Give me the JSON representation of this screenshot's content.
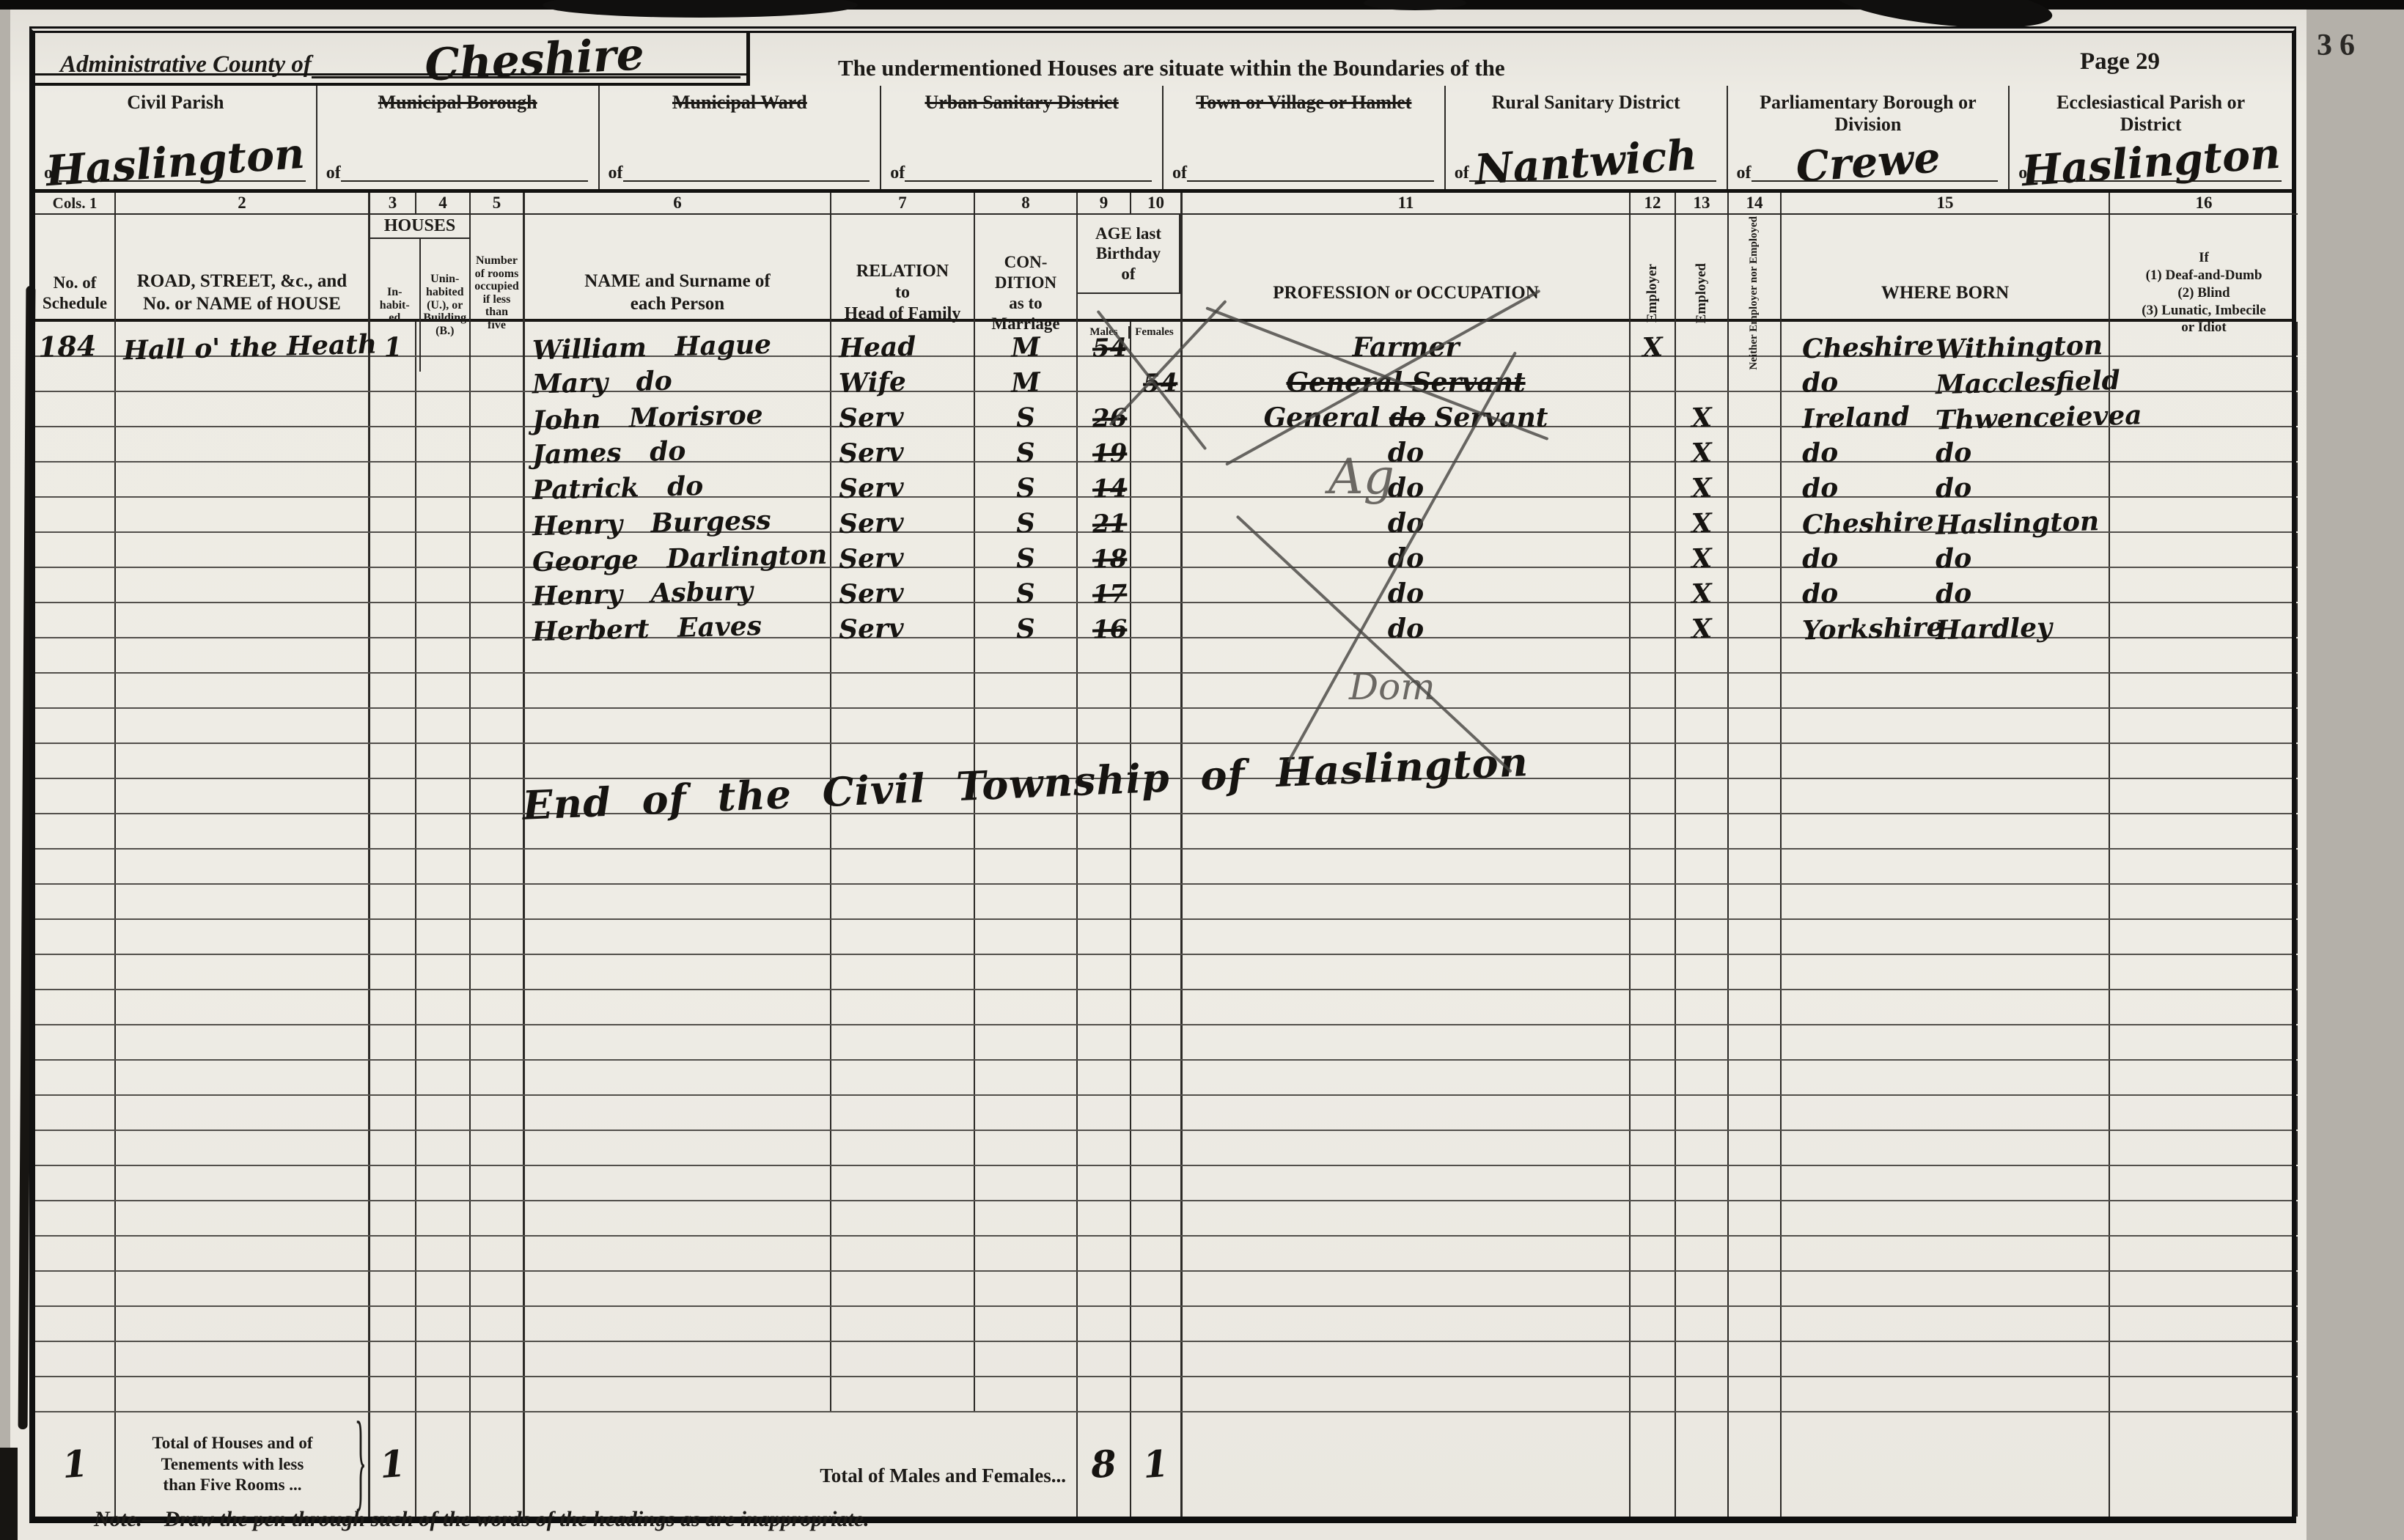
{
  "page": {
    "number_label": "Page 29",
    "margin_number": "36",
    "boundary_text": "The undermentioned Houses are situate within the Boundaries of the",
    "note": "Note.—Draw the pen through such of the words of the headings as are inappropriate."
  },
  "county": {
    "label": "Administrative County of",
    "value": "Cheshire"
  },
  "districts": [
    {
      "label": "Civil Parish",
      "prefix": "of",
      "value": "Haslington",
      "struck": false
    },
    {
      "label": "Municipal Borough",
      "prefix": "of",
      "value": "",
      "struck": true
    },
    {
      "label": "Municipal Ward",
      "prefix": "of",
      "value": "",
      "struck": true
    },
    {
      "label": "Urban Sanitary District",
      "prefix": "of",
      "value": "",
      "struck": true
    },
    {
      "label": "Town or Village or Hamlet",
      "prefix": "of",
      "value": "",
      "struck": true
    },
    {
      "label": "Rural Sanitary District",
      "prefix": "of",
      "value": "Nantwich",
      "struck": false
    },
    {
      "label": "Parliamentary Borough or\nDivision",
      "prefix": "of",
      "value": "Crewe",
      "struck": false
    },
    {
      "label": "Ecclesiastical Parish or\nDistrict",
      "prefix": "of",
      "value": "Haslington",
      "struck": false
    }
  ],
  "table": {
    "col_numbers": [
      "Cols. 1",
      "2",
      "3",
      "4",
      "5",
      "6",
      "7",
      "8",
      "9",
      "10",
      "11",
      "12",
      "13",
      "14",
      "15",
      "16"
    ],
    "headers": {
      "schedule": "No. of\nSchedule",
      "road": "ROAD, STREET, &c., and\nNo. or NAME of HOUSE",
      "houses_group": "HOUSES",
      "inhabited": "In-\nhabit-\ned",
      "uninhabited": "Unin-\nhabited\n(U.), or\nBuilding\n(B.)",
      "rooms": "Number\nof rooms\noccupied\nif less\nthan\nfive",
      "name": "NAME and Surname of\neach Person",
      "relation": "RELATION\nto\nHead of Family",
      "condition": "CON-\nDITION\nas to\nMarriage",
      "age_group": "AGE last\nBirthday\nof",
      "age_males": "Males",
      "age_females": "Females",
      "occupation": "PROFESSION or OCCUPATION",
      "employer": "Employer",
      "employed": "Employed",
      "neither": "Neither\nEmployer nor\nEmployed",
      "where_born": "WHERE  BORN",
      "infirmity": "If\n(1) Deaf-and-Dumb\n(2) Blind\n(3) Lunatic, Imbecile\nor Idiot"
    },
    "rows": [
      {
        "schedule": "184",
        "house": "Hall o' the Heath",
        "inhabited": "1",
        "name": "William Hague",
        "relation": "Head",
        "condition": "M",
        "age_m": "54",
        "age_f": "",
        "occ_pre": "Farmer",
        "occ_struck": "",
        "occ_post": "",
        "employer": "X",
        "employed": "",
        "born_a": "Cheshire",
        "born_b": "Withington"
      },
      {
        "schedule": "",
        "house": "",
        "inhabited": "",
        "name": "Mary do",
        "relation": "Wife",
        "condition": "M",
        "age_m": "",
        "age_f": "54",
        "occ_pre": "",
        "occ_struck": "General Servant",
        "occ_post": "",
        "employer": "",
        "employed": "",
        "born_a": "do",
        "born_b": "Macclesfield"
      },
      {
        "schedule": "",
        "house": "",
        "inhabited": "",
        "name": "John Morisroe",
        "relation": "Serv",
        "condition": "S",
        "age_m": "26",
        "age_f": "",
        "occ_pre": "General ",
        "occ_struck": "do",
        "occ_post": " Servant",
        "employer": "",
        "employed": "X",
        "born_a": "Ireland",
        "born_b": "Thwenceievea"
      },
      {
        "schedule": "",
        "house": "",
        "inhabited": "",
        "name": "James do",
        "relation": "Serv",
        "condition": "S",
        "age_m": "19",
        "age_f": "",
        "occ_pre": "do",
        "occ_struck": "",
        "occ_post": "",
        "employer": "",
        "employed": "X",
        "born_a": "do",
        "born_b": "do"
      },
      {
        "schedule": "",
        "house": "",
        "inhabited": "",
        "name": "Patrick do",
        "relation": "Serv",
        "condition": "S",
        "age_m": "14",
        "age_f": "",
        "occ_pre": "do",
        "occ_struck": "",
        "occ_post": "",
        "employer": "",
        "employed": "X",
        "born_a": "do",
        "born_b": "do"
      },
      {
        "schedule": "",
        "house": "",
        "inhabited": "",
        "name": "Henry Burgess",
        "relation": "Serv",
        "condition": "S",
        "age_m": "21",
        "age_f": "",
        "occ_pre": "do",
        "occ_struck": "",
        "occ_post": "",
        "employer": "",
        "employed": "X",
        "born_a": "Cheshire",
        "born_b": "Haslington"
      },
      {
        "schedule": "",
        "house": "",
        "inhabited": "",
        "name": "George Darlington",
        "relation": "Serv",
        "condition": "S",
        "age_m": "18",
        "age_f": "",
        "occ_pre": "do",
        "occ_struck": "",
        "occ_post": "",
        "employer": "",
        "employed": "X",
        "born_a": "do",
        "born_b": "do"
      },
      {
        "schedule": "",
        "house": "",
        "inhabited": "",
        "name": "Henry Asbury",
        "relation": "Serv",
        "condition": "S",
        "age_m": "17",
        "age_f": "",
        "occ_pre": "do",
        "occ_struck": "",
        "occ_post": "",
        "employer": "",
        "employed": "X",
        "born_a": "do",
        "born_b": "do"
      },
      {
        "schedule": "",
        "house": "",
        "inhabited": "",
        "name": "Herbert Eaves",
        "relation": "Serv",
        "condition": "S",
        "age_m": "16",
        "age_f": "",
        "occ_pre": "do",
        "occ_struck": "",
        "occ_post": "",
        "employer": "",
        "employed": "X",
        "born_a": "Yorkshire",
        "born_b": "Hardley"
      }
    ],
    "empty_row_count": 22
  },
  "annotations": {
    "township_end": "End of the Civil Township of Haslington",
    "pencil_ag": "Ag",
    "pencil_dom": "Dom"
  },
  "totals": {
    "schedule": "1",
    "houses_label": "Total of Houses and of\nTenements with less\nthan Five Rooms  ...",
    "houses_value": "1",
    "males_females_label": "Total of Males and Females...",
    "males": "8",
    "females": "1"
  },
  "colors": {
    "ink": "#161411",
    "pencil": "#55524d",
    "paper": "#edebe4",
    "line": "#2b2926"
  }
}
